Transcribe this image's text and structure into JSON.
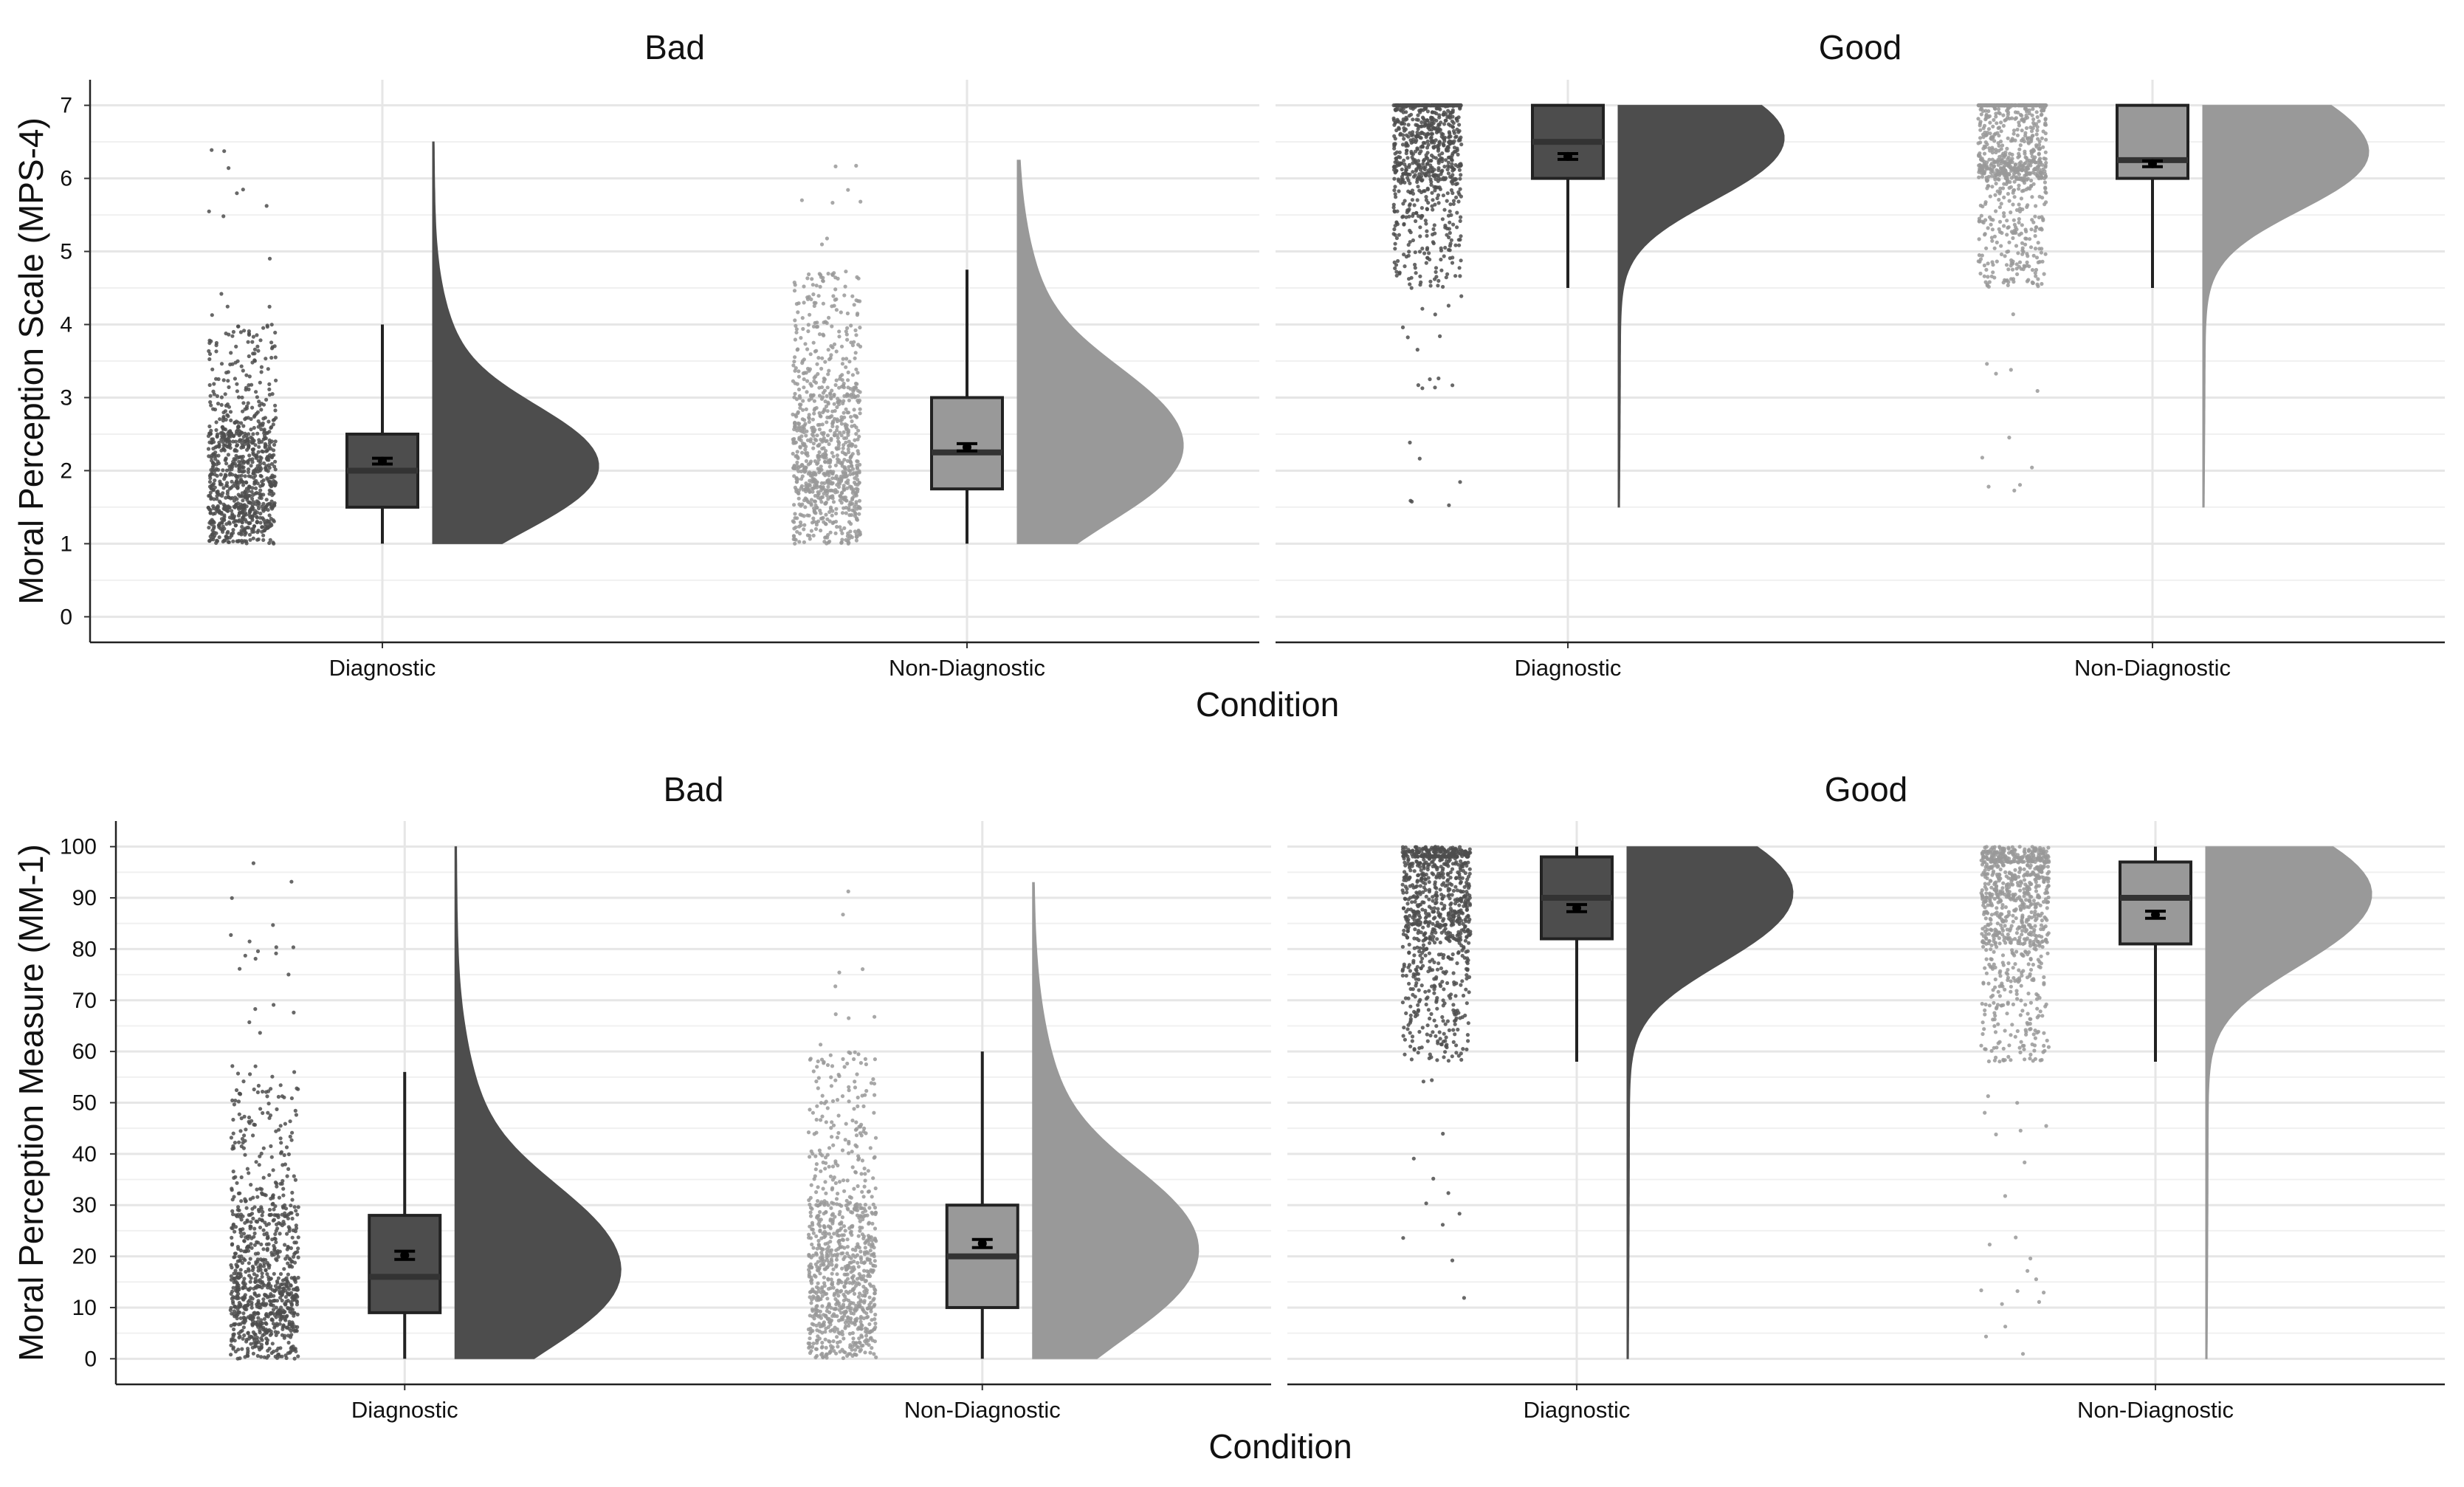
{
  "chart_data": [
    {
      "type": "raincloud",
      "ylabel": "Moral Perception Scale (MPS-4)",
      "xlabel": "Condition",
      "ylim": [
        -0.35,
        7.35
      ],
      "yticks": [
        0,
        1,
        2,
        3,
        4,
        5,
        6,
        7
      ],
      "categories": [
        "Diagnostic",
        "Non-Diagnostic"
      ],
      "panels": [
        {
          "title": "Bad",
          "groups": [
            {
              "category": "Diagnostic",
              "color": "#4d4d4d",
              "box": {
                "min": 1.0,
                "q1": 1.5,
                "median": 2.0,
                "q3": 2.5,
                "max": 4.0
              },
              "mean": 2.13,
              "ci": [
                2.09,
                2.17
              ],
              "range": [
                1.0,
                6.5
              ]
            },
            {
              "category": "Non-Diagnostic",
              "color": "#999999",
              "box": {
                "min": 1.0,
                "q1": 1.75,
                "median": 2.25,
                "q3": 3.0,
                "max": 4.75
              },
              "mean": 2.32,
              "ci": [
                2.27,
                2.37
              ],
              "range": [
                1.0,
                6.25
              ]
            }
          ]
        },
        {
          "title": "Good",
          "groups": [
            {
              "category": "Diagnostic",
              "color": "#4d4d4d",
              "box": {
                "min": 4.5,
                "q1": 6.0,
                "median": 6.5,
                "q3": 7.0,
                "max": 7.0
              },
              "mean": 6.3,
              "ci": [
                6.26,
                6.34
              ],
              "range": [
                1.5,
                7.0
              ]
            },
            {
              "category": "Non-Diagnostic",
              "color": "#999999",
              "box": {
                "min": 4.5,
                "q1": 6.0,
                "median": 6.25,
                "q3": 7.0,
                "max": 7.0
              },
              "mean": 6.2,
              "ci": [
                6.16,
                6.24
              ],
              "range": [
                1.5,
                7.0
              ]
            }
          ]
        }
      ]
    },
    {
      "type": "raincloud",
      "ylabel": "Moral Perception Measure (MM-1)",
      "xlabel": "Condition",
      "ylim": [
        -5,
        105
      ],
      "yticks": [
        0,
        10,
        20,
        30,
        40,
        50,
        60,
        70,
        80,
        90,
        100
      ],
      "categories": [
        "Diagnostic",
        "Non-Diagnostic"
      ],
      "panels": [
        {
          "title": "Bad",
          "groups": [
            {
              "category": "Diagnostic",
              "color": "#4d4d4d",
              "box": {
                "min": 0,
                "q1": 9,
                "median": 16,
                "q3": 28,
                "max": 56
              },
              "mean": 20.2,
              "ci": [
                19.4,
                21.0
              ],
              "range": [
                0,
                100
              ]
            },
            {
              "category": "Non-Diagnostic",
              "color": "#999999",
              "box": {
                "min": 0,
                "q1": 10,
                "median": 20,
                "q3": 30,
                "max": 60
              },
              "mean": 22.5,
              "ci": [
                21.7,
                23.3
              ],
              "range": [
                0,
                93
              ]
            }
          ]
        },
        {
          "title": "Good",
          "groups": [
            {
              "category": "Diagnostic",
              "color": "#4d4d4d",
              "box": {
                "min": 58,
                "q1": 82,
                "median": 90,
                "q3": 98,
                "max": 100
              },
              "mean": 88.0,
              "ci": [
                87.3,
                88.7
              ],
              "range": [
                0,
                100
              ]
            },
            {
              "category": "Non-Diagnostic",
              "color": "#999999",
              "box": {
                "min": 58,
                "q1": 81,
                "median": 90,
                "q3": 97,
                "max": 100
              },
              "mean": 86.7,
              "ci": [
                86.0,
                87.4
              ],
              "range": [
                0,
                100
              ]
            }
          ]
        }
      ]
    }
  ]
}
